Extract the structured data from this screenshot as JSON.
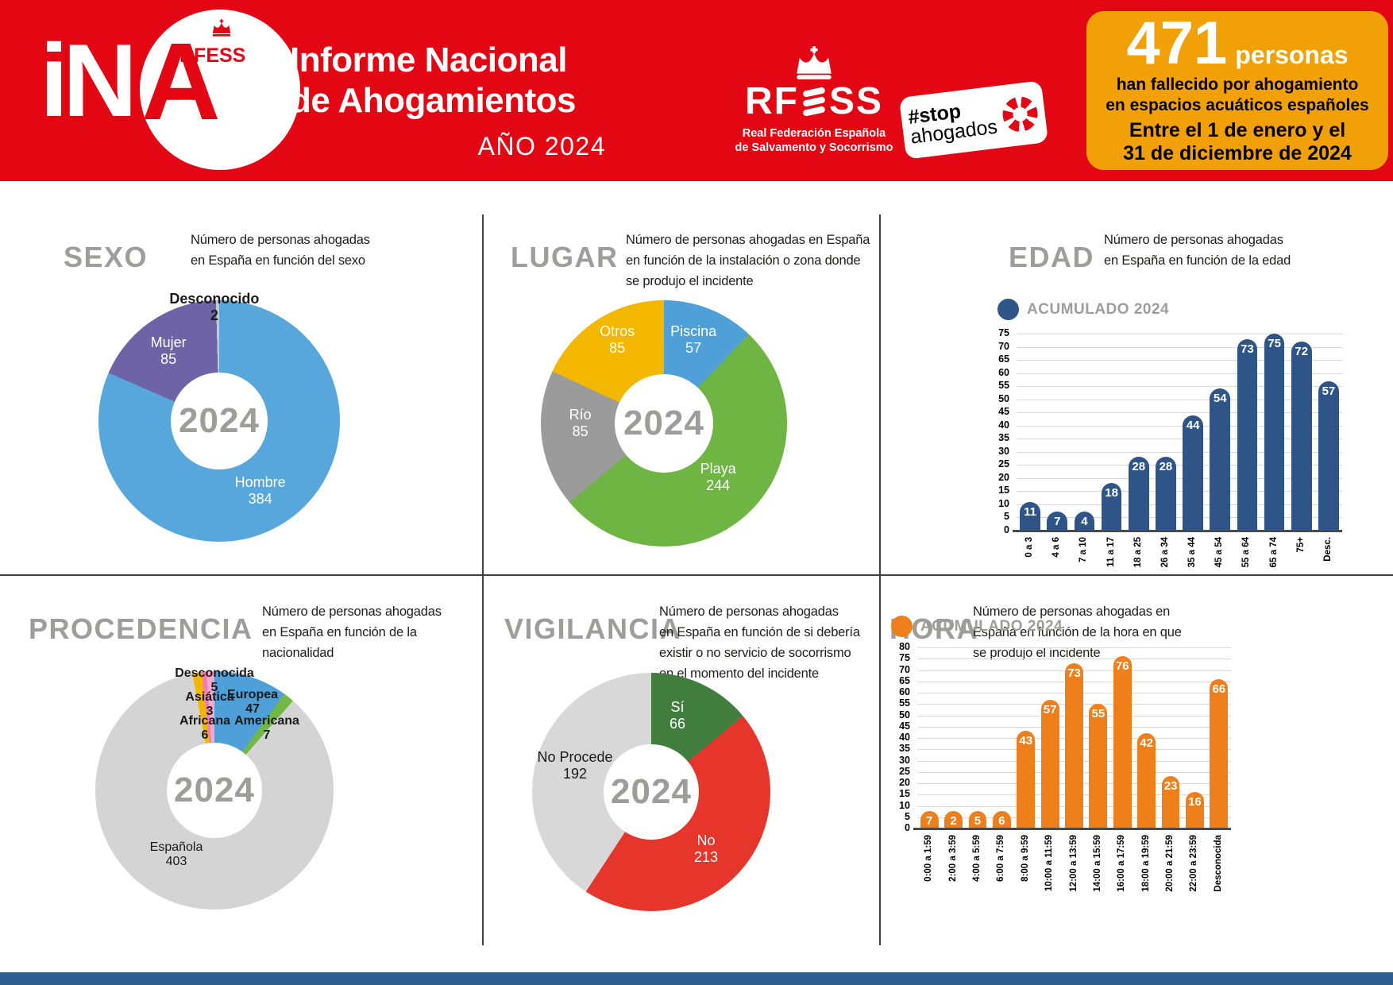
{
  "colors": {
    "header_red": "#e30613",
    "stat_orange": "#f2a007",
    "title_gray": "#9d9d9c",
    "footer_blue": "#2d5e8e",
    "divider": "#3f3f3f"
  },
  "header": {
    "logo": {
      "ina_text": "iN",
      "ina_a": "A",
      "circle_text": "RFESS"
    },
    "title_line1": "Informe Nacional",
    "title_line2": "de Ahogamientos",
    "year": "AÑO 2024",
    "rfess": {
      "acronym": "RFESS",
      "subtitle": "Real Federación Española\nde Salvamento y Socorrismo"
    },
    "sticker": {
      "tag": "#stop",
      "word": "ahogados"
    },
    "stat_box": {
      "number": "471",
      "unit": "personas",
      "line1": "han fallecido por ahogamiento",
      "line2": "en espacios acuáticos españoles",
      "line3": "Entre el 1 de enero y el",
      "line4": "31 de diciembre de 2024"
    }
  },
  "panels": {
    "sexo": {
      "title": "SEXO",
      "desc": "Número de personas ahogadas\nen España en función del sexo"
    },
    "lugar": {
      "title": "LUGAR",
      "desc": "Número de personas ahogadas en España\nen función de la instalación o zona donde\nse produjo el incidente"
    },
    "edad": {
      "title": "EDAD",
      "desc": "Número de personas ahogadas\nen España en función de la edad"
    },
    "procedencia": {
      "title": "PROCEDENCIA",
      "desc": "Número de personas ahogadas\nen España en función de la\nnacionalidad"
    },
    "vigilancia": {
      "title": "VIGILANCIA",
      "desc": "Número de personas ahogadas\nen España en función de si debería\nexistir o no servicio de socorrismo\nen el momento del incidente"
    },
    "hora": {
      "title": "HORA",
      "desc": "Número de personas ahogadas en\nEspaña en función de la hora en que\nse produjo el incidente"
    }
  },
  "chart_data": [
    {
      "panel": "sexo",
      "type": "pie",
      "title": "SEXO",
      "center_label": "2024",
      "slices": [
        {
          "label": "Hombre",
          "value": 384,
          "color": "#58a7dc",
          "text_color": "#ffffff",
          "label_at": [
            67,
            79
          ]
        },
        {
          "label": "Mujer",
          "value": 85,
          "color": "#6f63a8",
          "text_color": "#ffffff",
          "label_at": [
            29,
            21
          ]
        },
        {
          "label": "Desconocido",
          "value": 2,
          "color": "#c8c8c8",
          "text_color": "#1a1a1a",
          "bold": true,
          "label_at": [
            48,
            3
          ]
        }
      ]
    },
    {
      "panel": "lugar",
      "type": "pie",
      "title": "LUGAR",
      "center_label": "2024",
      "slices": [
        {
          "label": "Piscina",
          "value": 57,
          "color": "#4f9fd9",
          "text_color": "#ffffff",
          "label_at": [
            62,
            16
          ]
        },
        {
          "label": "Playa",
          "value": 244,
          "color": "#6eb544",
          "text_color": "#ffffff",
          "label_at": [
            72,
            72
          ]
        },
        {
          "label": "Río",
          "value": 85,
          "color": "#9c9b9b",
          "text_color": "#ffffff",
          "label_at": [
            16,
            50
          ]
        },
        {
          "label": "Otros",
          "value": 85,
          "color": "#f3b700",
          "text_color": "#ffffff",
          "label_at": [
            31,
            16
          ]
        }
      ]
    },
    {
      "panel": "edad",
      "type": "bar",
      "title": "EDAD",
      "legend": "ACUMULADO 2024",
      "bar_color": "#2f5588",
      "ylim": [
        0,
        75
      ],
      "ytick_step": 5,
      "grid": true,
      "categories": [
        "0 a 3",
        "4 a 6",
        "7 a 10",
        "11 a 17",
        "18 a 25",
        "26 a 34",
        "35 a 44",
        "45 a 54",
        "55 a 64",
        "65 a 74",
        "75+",
        "Desc."
      ],
      "values": [
        11,
        7,
        4,
        18,
        28,
        28,
        44,
        54,
        73,
        75,
        72,
        57
      ]
    },
    {
      "panel": "procedencia",
      "type": "pie",
      "title": "PROCEDENCIA",
      "center_label": "2024",
      "slices": [
        {
          "label": "Europea",
          "value": 47,
          "color": "#4f9fd9",
          "text_color": "#1a1a1a",
          "bold": true,
          "label_at": [
            66,
            13
          ]
        },
        {
          "label": "Americana",
          "value": 7,
          "color": "#72b843",
          "text_color": "#1a1a1a",
          "bold": true,
          "label_at": [
            72,
            24
          ]
        },
        {
          "label": "Española",
          "value": 403,
          "color": "#d4d4d4",
          "text_color": "#1a1a1a",
          "label_at": [
            34,
            77
          ]
        },
        {
          "label": "Africana",
          "value": 6,
          "color": "#f3b700",
          "text_color": "#1a1a1a",
          "bold": true,
          "label_at": [
            46,
            24
          ]
        },
        {
          "label": "Asiática",
          "value": 3,
          "color": "#ef7cb5",
          "text_color": "#1a1a1a",
          "bold": true,
          "label_at": [
            48,
            14
          ]
        },
        {
          "label": "Desconocida",
          "value": 5,
          "color": "#f6a9cb",
          "text_color": "#1a1a1a",
          "bold": true,
          "label_at": [
            50,
            4
          ]
        }
      ]
    },
    {
      "panel": "vigilancia",
      "type": "pie",
      "title": "VIGILANCIA",
      "center_label": "2024",
      "slices": [
        {
          "label": "Sí",
          "value": 66,
          "color": "#417e3e",
          "text_color": "#ffffff",
          "label_at": [
            61,
            18
          ]
        },
        {
          "label": "No",
          "value": 213,
          "color": "#e6352b",
          "text_color": "#ffffff",
          "label_at": [
            73,
            74
          ]
        },
        {
          "label": "No Procede",
          "value": 192,
          "color": "#d8d8d8",
          "text_color": "#1a1a1a",
          "label_at": [
            18,
            39
          ]
        }
      ]
    },
    {
      "panel": "hora",
      "type": "bar",
      "title": "HORA",
      "legend": "ACUMULADO 2024",
      "bar_color": "#ee7f1b",
      "ylim": [
        0,
        80
      ],
      "ytick_step": 5,
      "grid": true,
      "categories": [
        "0:00 a 1:59",
        "2:00 a 3:59",
        "4:00 a 5:59",
        "6:00 a 7:59",
        "8:00 a 9:59",
        "10:00 a 11:59",
        "12:00 a 13:59",
        "14:00 a 15:59",
        "16:00 a 17:59",
        "18:00 a 19:59",
        "20:00 a 21:59",
        "22:00 a 23:59",
        "Desconocida"
      ],
      "values": [
        7,
        2,
        5,
        6,
        43,
        57,
        73,
        55,
        76,
        42,
        23,
        16,
        66
      ]
    }
  ]
}
